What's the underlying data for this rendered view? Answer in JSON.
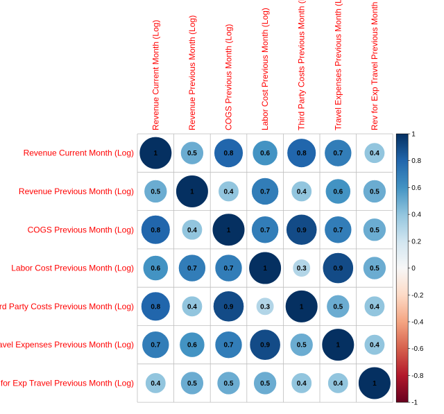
{
  "chart_data": {
    "type": "heatmap",
    "style": "corrplot-circle",
    "title": "",
    "labels": [
      "Revenue Current Month (Log)",
      "Revenue Previous Month (Log)",
      "COGS Previous Month (Log)",
      "Labor Cost Previous Month (Log)",
      "Third Party Costs Previous Month (Log)",
      "Travel Expenses Previous Month (Log)",
      "Rev for Exp Travel Previous Month (Log)"
    ],
    "matrix": [
      [
        1,
        0.5,
        0.8,
        0.6,
        0.8,
        0.7,
        0.4
      ],
      [
        0.5,
        1,
        0.4,
        0.7,
        0.4,
        0.6,
        0.5
      ],
      [
        0.8,
        0.4,
        1,
        0.7,
        0.9,
        0.7,
        0.5
      ],
      [
        0.6,
        0.7,
        0.7,
        1,
        0.3,
        0.9,
        0.5
      ],
      [
        0.8,
        0.4,
        0.9,
        0.3,
        1,
        0.5,
        0.4
      ],
      [
        0.7,
        0.6,
        0.7,
        0.9,
        0.5,
        1,
        0.4
      ],
      [
        0.4,
        0.5,
        0.5,
        0.5,
        0.4,
        0.4,
        1
      ]
    ],
    "value_range": [
      -1,
      1
    ],
    "colorbar": {
      "ticks": [
        "1",
        "0.8",
        "0.6",
        "0.4",
        "0.2",
        "0",
        "-0.2",
        "-0.4",
        "-0.6",
        "-0.8",
        "-1"
      ],
      "position": "right"
    },
    "colors": {
      "label_color": "#ff0000",
      "negative_extreme": "#67001f",
      "neutral": "#f7f7f7",
      "positive_extreme": "#053061",
      "grid": "#bebebe"
    },
    "grid": true
  }
}
